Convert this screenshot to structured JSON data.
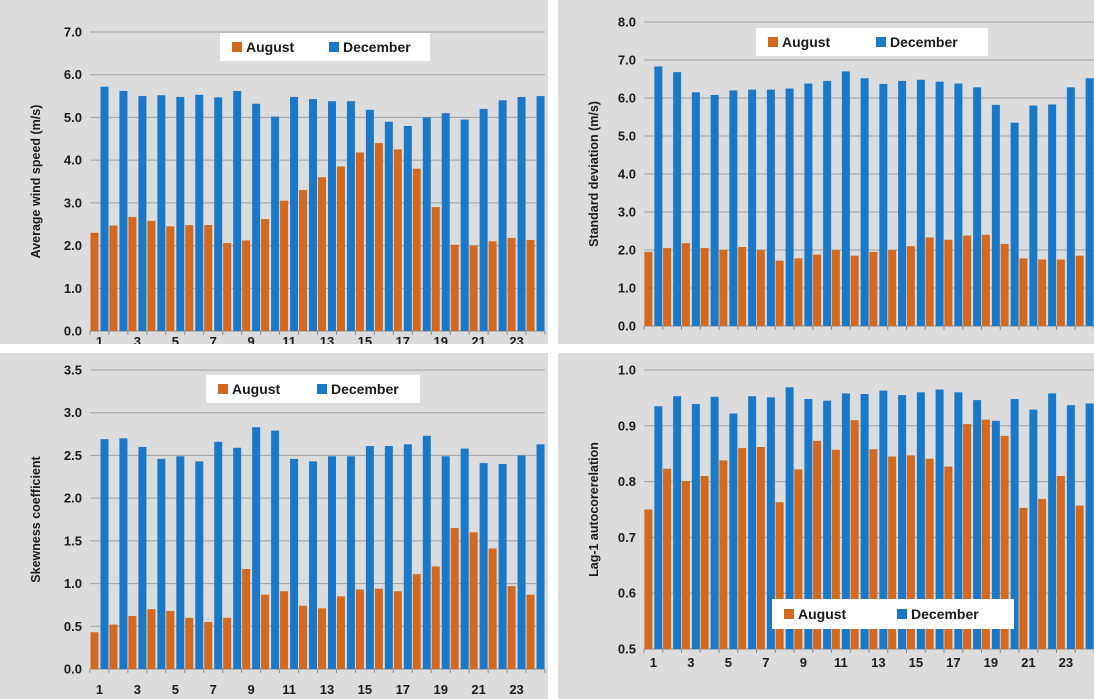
{
  "colors": {
    "august": "#d2691e",
    "december": "#1a78c8",
    "plot_bg": "#dcdcdc",
    "grid": "#a0a0a0",
    "legend_bg": "#ffffff"
  },
  "chart_data": [
    {
      "id": "tl",
      "type": "bar",
      "ylabel": "Average wind speed (m/s)",
      "ylim": [
        0,
        7
      ],
      "ytick_step": 1,
      "yticks": [
        "0.0",
        "1.0",
        "2.0",
        "3.0",
        "4.0",
        "5.0",
        "6.0",
        "7.0"
      ],
      "xticks": [
        "1",
        "3",
        "5",
        "7",
        "9",
        "11",
        "13",
        "15",
        "17",
        "19",
        "21",
        "23"
      ],
      "grid": true,
      "legend": "top-center",
      "categories": [
        "1",
        "2",
        "3",
        "4",
        "5",
        "6",
        "7",
        "8",
        "9",
        "10",
        "11",
        "12",
        "13",
        "14",
        "15",
        "16",
        "17",
        "18",
        "19",
        "20",
        "21",
        "22",
        "23",
        "24"
      ],
      "series": [
        {
          "name": "August",
          "values": [
            2.3,
            2.47,
            2.67,
            2.58,
            2.45,
            2.48,
            2.48,
            2.06,
            2.12,
            2.62,
            3.05,
            3.3,
            3.6,
            3.85,
            4.18,
            4.4,
            4.25,
            3.8,
            2.9,
            2.02,
            2.0,
            2.1,
            2.18,
            2.13
          ]
        },
        {
          "name": "December",
          "values": [
            5.72,
            5.62,
            5.5,
            5.52,
            5.48,
            5.53,
            5.47,
            5.62,
            5.32,
            5.02,
            5.48,
            5.43,
            5.38,
            5.38,
            5.18,
            4.9,
            4.8,
            5.0,
            5.1,
            4.95,
            5.2,
            5.4,
            5.48,
            5.5
          ]
        }
      ]
    },
    {
      "id": "tr",
      "type": "bar",
      "ylabel": "Standard deviation (m/s)",
      "ylim": [
        0,
        8
      ],
      "ytick_step": 1,
      "yticks": [
        "0.0",
        "1.0",
        "2.0",
        "3.0",
        "4.0",
        "5.0",
        "6.0",
        "7.0",
        "8.0"
      ],
      "xticks": [],
      "grid": true,
      "legend": "top-center",
      "categories": [
        "1",
        "2",
        "3",
        "4",
        "5",
        "6",
        "7",
        "8",
        "9",
        "10",
        "11",
        "12",
        "13",
        "14",
        "15",
        "16",
        "17",
        "18",
        "19",
        "20",
        "21",
        "22",
        "23",
        "24"
      ],
      "series": [
        {
          "name": "August",
          "values": [
            1.95,
            2.05,
            2.18,
            2.05,
            2.0,
            2.08,
            2.0,
            1.72,
            1.78,
            1.88,
            2.0,
            1.85,
            1.95,
            2.0,
            2.1,
            2.33,
            2.27,
            2.38,
            2.4,
            2.16,
            1.78,
            1.75,
            1.75,
            1.85
          ]
        },
        {
          "name": "December",
          "values": [
            6.83,
            6.68,
            6.15,
            6.08,
            6.2,
            6.22,
            6.22,
            6.25,
            6.38,
            6.45,
            6.7,
            6.52,
            6.37,
            6.45,
            6.48,
            6.43,
            6.38,
            6.28,
            5.82,
            5.35,
            5.8,
            5.83,
            6.28,
            6.52
          ]
        }
      ]
    },
    {
      "id": "bl",
      "type": "bar",
      "ylabel": "Skewness coefficient",
      "ylim": [
        0,
        3.5
      ],
      "ytick_step": 0.5,
      "yticks": [
        "0.0",
        "0.5",
        "1.0",
        "1.5",
        "2.0",
        "2.5",
        "3.0",
        "3.5"
      ],
      "xticks": [
        "1",
        "3",
        "5",
        "7",
        "9",
        "11",
        "13",
        "15",
        "17",
        "19",
        "21",
        "23"
      ],
      "grid": true,
      "legend": "top-center",
      "categories": [
        "1",
        "2",
        "3",
        "4",
        "5",
        "6",
        "7",
        "8",
        "9",
        "10",
        "11",
        "12",
        "13",
        "14",
        "15",
        "16",
        "17",
        "18",
        "19",
        "20",
        "21",
        "22",
        "23",
        "24"
      ],
      "series": [
        {
          "name": "August",
          "values": [
            0.43,
            0.52,
            0.62,
            0.7,
            0.68,
            0.6,
            0.55,
            0.6,
            1.17,
            0.87,
            0.91,
            0.74,
            0.71,
            0.85,
            0.93,
            0.94,
            0.91,
            1.11,
            1.2,
            1.65,
            1.6,
            1.41,
            0.97,
            0.87
          ]
        },
        {
          "name": "December",
          "values": [
            2.69,
            2.7,
            2.6,
            2.46,
            2.49,
            2.43,
            2.66,
            2.59,
            2.83,
            2.79,
            2.46,
            2.43,
            2.49,
            2.49,
            2.61,
            2.61,
            2.63,
            2.73,
            2.49,
            2.58,
            2.41,
            2.4,
            2.5,
            2.63
          ]
        }
      ]
    },
    {
      "id": "br",
      "type": "bar",
      "ylabel": "Lag-1 autocorerelation",
      "ylim": [
        0.5,
        1.0
      ],
      "ytick_step": 0.1,
      "yticks": [
        "0.5",
        "0.6",
        "0.7",
        "0.8",
        "0.9",
        "1.0"
      ],
      "xticks": [
        "1",
        "3",
        "5",
        "7",
        "9",
        "11",
        "13",
        "15",
        "17",
        "19",
        "21",
        "23"
      ],
      "grid": true,
      "legend": "bottom-center",
      "categories": [
        "1",
        "2",
        "3",
        "4",
        "5",
        "6",
        "7",
        "8",
        "9",
        "10",
        "11",
        "12",
        "13",
        "14",
        "15",
        "16",
        "17",
        "18",
        "19",
        "20",
        "21",
        "22",
        "23",
        "24"
      ],
      "series": [
        {
          "name": "August",
          "values": [
            0.75,
            0.823,
            0.801,
            0.81,
            0.838,
            0.86,
            0.862,
            0.763,
            0.822,
            0.873,
            0.857,
            0.91,
            0.858,
            0.845,
            0.847,
            0.841,
            0.827,
            0.903,
            0.911,
            0.882,
            0.753,
            0.769,
            0.81,
            0.757
          ]
        },
        {
          "name": "December",
          "values": [
            0.935,
            0.953,
            0.939,
            0.952,
            0.922,
            0.953,
            0.951,
            0.969,
            0.948,
            0.945,
            0.958,
            0.957,
            0.963,
            0.955,
            0.96,
            0.965,
            0.96,
            0.946,
            0.909,
            0.948,
            0.929,
            0.958,
            0.937,
            0.94
          ]
        }
      ]
    }
  ]
}
